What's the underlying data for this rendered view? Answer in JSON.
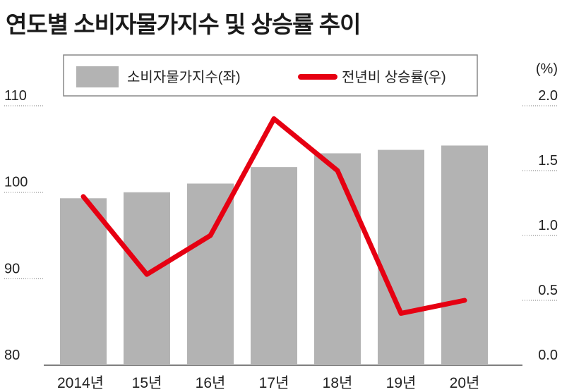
{
  "title": "연도별 소비자물가지수 및 상승률 추이",
  "chart_data": {
    "type": "bar-line",
    "categories": [
      "2014년",
      "15년",
      "16년",
      "17년",
      "18년",
      "19년",
      "20년"
    ],
    "series": [
      {
        "name": "소비자물가지수(좌)",
        "type": "bar",
        "axis": "left",
        "color": "#b3b3b3",
        "values": [
          99.3,
          100.0,
          101.0,
          102.9,
          104.5,
          104.9,
          105.4
        ]
      },
      {
        "name": "전년비 상승률(우)",
        "type": "line",
        "axis": "right",
        "color": "#e60012",
        "values": [
          1.3,
          0.7,
          1.0,
          1.9,
          1.5,
          0.4,
          0.5
        ]
      }
    ],
    "y_left": {
      "range": [
        80,
        110
      ],
      "ticks": [
        "80",
        "90",
        "100",
        "110"
      ]
    },
    "y_right": {
      "unit": "(%)",
      "range": [
        0.0,
        2.0
      ],
      "ticks": [
        "0.0",
        "0.5",
        "1.0",
        "1.5",
        "2.0"
      ]
    },
    "grid": "dotted",
    "legend": "top"
  }
}
